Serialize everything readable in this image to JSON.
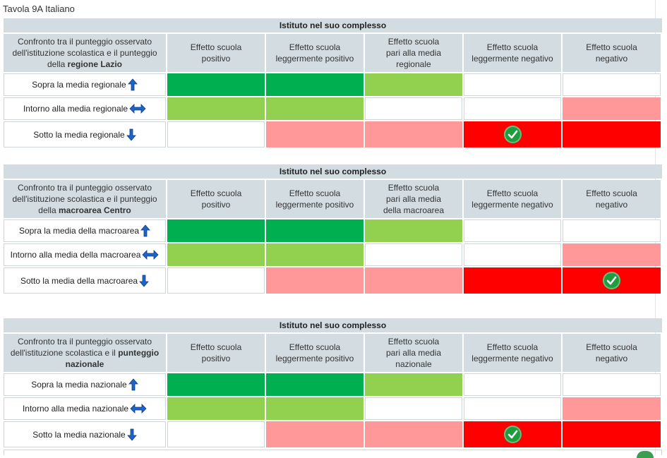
{
  "page": {
    "title": "Tavola 9A Italiano"
  },
  "colors": {
    "dark_green": "#00b050",
    "light_green": "#92d050",
    "pink": "#ff9999",
    "red": "#ff0000",
    "white": "#ffffff",
    "header_bg": "#d3dde1"
  },
  "effect_headers": [
    [
      "Effetto scuola",
      "positivo"
    ],
    [
      "Effetto scuola",
      "leggermente positivo"
    ],
    [
      "Effetto scuola",
      "pari alla media",
      "regionale"
    ],
    [
      "Effetto scuola",
      "leggermente negativo"
    ],
    [
      "Effetto scuola",
      "negativo"
    ]
  ],
  "tables": [
    {
      "group_header": "Istituto nel suo complesso",
      "compare_pre": "Confronto tra il punteggio osservato dell'istituzione scolastica e il punteggio della ",
      "compare_bold": "regione Lazio",
      "effects": [
        [
          "Effetto scuola",
          "positivo"
        ],
        [
          "Effetto scuola",
          "leggermente positivo"
        ],
        [
          "Effetto scuola",
          "pari alla media",
          "regionale"
        ],
        [
          "Effetto scuola",
          "leggermente negativo"
        ],
        [
          "Effetto scuola",
          "negativo"
        ]
      ],
      "rows": [
        {
          "label": "Sopra la media regionale",
          "arrow": "up-arrow-icon",
          "cells": [
            "dark_green",
            "dark_green",
            "light_green",
            "white",
            "white"
          ],
          "check": -1
        },
        {
          "label": "Intorno alla media regionale",
          "arrow": "double-arrow-icon",
          "cells": [
            "light_green",
            "light_green",
            "white",
            "white",
            "pink"
          ],
          "check": -1
        },
        {
          "label": "Sotto la media regionale",
          "arrow": "down-arrow-icon",
          "cells": [
            "white",
            "pink",
            "pink",
            "red",
            "red"
          ],
          "check": 3
        }
      ]
    },
    {
      "group_header": "Istituto nel suo complesso",
      "compare_pre": "Confronto tra il punteggio osservato dell'istituzione scolastica e il punteggio della ",
      "compare_bold": "macroarea Centro",
      "effects": [
        [
          "Effetto scuola",
          "positivo"
        ],
        [
          "Effetto scuola",
          "leggermente positivo"
        ],
        [
          "Effetto scuola",
          "pari alla media",
          "della macroarea"
        ],
        [
          "Effetto scuola",
          "leggermente negativo"
        ],
        [
          "Effetto scuola",
          "negativo"
        ]
      ],
      "rows": [
        {
          "label": "Sopra la media della macroarea",
          "arrow": "up-arrow-icon",
          "cells": [
            "dark_green",
            "dark_green",
            "light_green",
            "white",
            "white"
          ],
          "check": -1
        },
        {
          "label": "Intorno alla media della macroarea",
          "arrow": "double-arrow-icon",
          "cells": [
            "light_green",
            "light_green",
            "white",
            "white",
            "pink"
          ],
          "check": -1
        },
        {
          "label": "Sotto la media della macroarea",
          "arrow": "down-arrow-icon",
          "cells": [
            "white",
            "pink",
            "pink",
            "red",
            "red"
          ],
          "check": 4
        }
      ]
    },
    {
      "group_header": "Istituto nel suo complesso",
      "compare_pre": "Confronto tra il punteggio osservato dell'istituzione scolastica e il ",
      "compare_bold": "punteggio nazionale",
      "effects": [
        [
          "Effetto scuola",
          "positivo"
        ],
        [
          "Effetto scuola",
          "leggermente positivo"
        ],
        [
          "Effetto scuola",
          "pari alla media",
          "nazionale"
        ],
        [
          "Effetto scuola",
          "leggermente negativo"
        ],
        [
          "Effetto scuola",
          "negativo"
        ]
      ],
      "rows": [
        {
          "label": "Sopra la media nazionale",
          "arrow": "up-arrow-icon",
          "cells": [
            "dark_green",
            "dark_green",
            "light_green",
            "white",
            "white"
          ],
          "check": -1
        },
        {
          "label": "Intorno alla media nazionale",
          "arrow": "double-arrow-icon",
          "cells": [
            "light_green",
            "light_green",
            "white",
            "white",
            "pink"
          ],
          "check": -1
        },
        {
          "label": "Sotto la media nazionale",
          "arrow": "down-arrow-icon",
          "cells": [
            "white",
            "pink",
            "pink",
            "red",
            "red"
          ],
          "check": 3
        }
      ]
    }
  ]
}
